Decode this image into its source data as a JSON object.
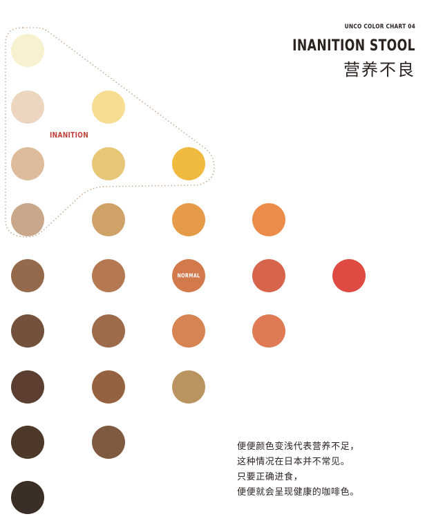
{
  "header": {
    "series": "UNCO COLOR CHART 04",
    "title_en": "INANITION STOOL",
    "title_zh": "营养不良"
  },
  "labels": {
    "inanition": "INANITION",
    "normal": "NORMAL"
  },
  "caption": [
    "便便颜色变浅代表营养不足，",
    "这种情况在日本并不常见。",
    "只要正确进食，",
    "便便就会呈现健康的咖啡色。"
  ],
  "swatches": [
    [
      "#f8f1cf"
    ],
    [
      "#ecd6bf",
      "#f6dd91"
    ],
    [
      "#ddbb9b",
      "#e7c677",
      "#f0ba3f"
    ],
    [
      "#c8a78a",
      "#cfa268",
      "#e59b48",
      "#eb8c4b"
    ],
    [
      "#95694b",
      "#b57952",
      "#d27a4c",
      "#d7654c",
      "#df4a42"
    ],
    [
      "#73513d",
      "#9e6b4a",
      "#d68452",
      "#e07a54"
    ],
    [
      "#5c3f31",
      "#95623f",
      "#b99460"
    ],
    [
      "#4d382b",
      "#7f5940"
    ],
    [
      "#3a2e26"
    ]
  ],
  "normal_swatch": {
    "row": 4,
    "col": 2
  }
}
